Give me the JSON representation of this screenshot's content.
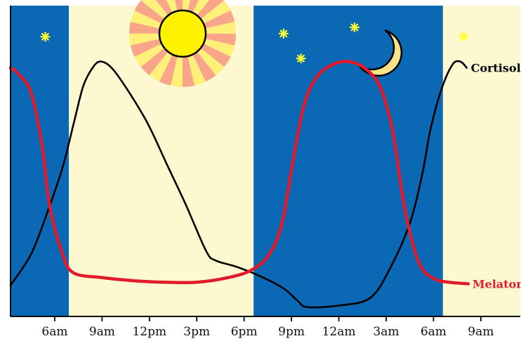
{
  "chart_data": {
    "type": "line",
    "title": "",
    "xlabel": "",
    "ylabel": "",
    "x_unit": "hours from 12am of day 1",
    "x_ticks": [
      {
        "hour": 6,
        "label": "6am"
      },
      {
        "hour": 9,
        "label": "9am"
      },
      {
        "hour": 12,
        "label": "12pm"
      },
      {
        "hour": 15,
        "label": "3pm"
      },
      {
        "hour": 18,
        "label": "6pm"
      },
      {
        "hour": 21,
        "label": "9pm"
      },
      {
        "hour": 24,
        "label": "12am"
      },
      {
        "hour": 27,
        "label": "3am"
      },
      {
        "hour": 30,
        "label": "6am"
      },
      {
        "hour": 33,
        "label": "9am"
      }
    ],
    "xlim": [
      3.2,
      35.5
    ],
    "ylim": [
      0,
      1
    ],
    "y_axis_ticks": false,
    "grid": false,
    "legend": "inline labels at right end of each curve",
    "background_bands": [
      {
        "start": 3.2,
        "end": 6.9,
        "period": "night",
        "color": "#0a68b4"
      },
      {
        "start": 6.9,
        "end": 18.6,
        "period": "day",
        "color": "#fdf8cf"
      },
      {
        "start": 18.6,
        "end": 30.6,
        "period": "night",
        "color": "#0a68b4"
      },
      {
        "start": 30.6,
        "end": 35.5,
        "period": "day",
        "color": "#fdf8cf"
      }
    ],
    "decorations": {
      "sun": {
        "hour": 14.1,
        "level": 0.91,
        "color": "#fff200",
        "ray_colors": [
          "#f8a58a",
          "#fff07a"
        ]
      },
      "moon": {
        "hour": 26.6,
        "level": 0.85,
        "color": "#fbe38a"
      },
      "stars": [
        {
          "hour": 5.4,
          "level": 0.9
        },
        {
          "hour": 20.5,
          "level": 0.91
        },
        {
          "hour": 21.6,
          "level": 0.83
        },
        {
          "hour": 25.0,
          "level": 0.93
        },
        {
          "hour": 31.9,
          "level": 0.9
        }
      ],
      "star_color": "#ffff33"
    },
    "series": [
      {
        "name": "Cortisol",
        "color": "#000000",
        "points": [
          [
            3.2,
            0.1
          ],
          [
            4.5,
            0.2
          ],
          [
            5.5,
            0.33
          ],
          [
            6.5,
            0.48
          ],
          [
            7.2,
            0.62
          ],
          [
            7.8,
            0.74
          ],
          [
            8.4,
            0.8
          ],
          [
            8.9,
            0.82
          ],
          [
            9.6,
            0.8
          ],
          [
            10.6,
            0.73
          ],
          [
            11.9,
            0.62
          ],
          [
            13.1,
            0.49
          ],
          [
            14.3,
            0.36
          ],
          [
            15.6,
            0.21
          ],
          [
            16.2,
            0.18
          ],
          [
            17.5,
            0.16
          ],
          [
            19.0,
            0.13
          ],
          [
            20.5,
            0.09
          ],
          [
            21.4,
            0.05
          ],
          [
            22.0,
            0.03
          ],
          [
            24.0,
            0.035
          ],
          [
            26.0,
            0.06
          ],
          [
            27.3,
            0.16
          ],
          [
            28.5,
            0.3
          ],
          [
            29.3,
            0.46
          ],
          [
            29.8,
            0.6
          ],
          [
            30.5,
            0.73
          ],
          [
            31.2,
            0.81
          ],
          [
            31.7,
            0.82
          ],
          [
            32.1,
            0.8
          ]
        ]
      },
      {
        "name": "Melatonin",
        "color": "#e21b2c",
        "points": [
          [
            3.2,
            0.8
          ],
          [
            3.7,
            0.78
          ],
          [
            4.5,
            0.72
          ],
          [
            5.2,
            0.55
          ],
          [
            5.7,
            0.35
          ],
          [
            6.5,
            0.2
          ],
          [
            7.2,
            0.14
          ],
          [
            9.0,
            0.125
          ],
          [
            11.0,
            0.115
          ],
          [
            13.0,
            0.11
          ],
          [
            15.0,
            0.11
          ],
          [
            17.0,
            0.125
          ],
          [
            18.5,
            0.15
          ],
          [
            19.6,
            0.2
          ],
          [
            20.4,
            0.3
          ],
          [
            21.1,
            0.5
          ],
          [
            21.8,
            0.68
          ],
          [
            22.6,
            0.77
          ],
          [
            23.6,
            0.81
          ],
          [
            24.6,
            0.82
          ],
          [
            25.6,
            0.8
          ],
          [
            26.6,
            0.74
          ],
          [
            27.4,
            0.6
          ],
          [
            28.0,
            0.4
          ],
          [
            28.5,
            0.27
          ],
          [
            29.2,
            0.16
          ],
          [
            30.1,
            0.12
          ],
          [
            31.0,
            0.11
          ],
          [
            32.2,
            0.105
          ]
        ]
      }
    ]
  }
}
